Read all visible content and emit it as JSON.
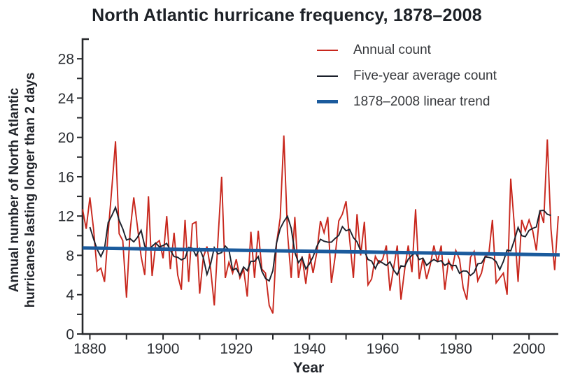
{
  "chart_data": {
    "type": "line",
    "title": "North Atlantic hurricane frequency, 1878–2008",
    "xlabel": "Year",
    "ylabel_line1": "Annual number of North Atlantic",
    "ylabel_line2": "hurricanes lasting longer than 2 days",
    "xlim": [
      1878,
      2008
    ],
    "ylim": [
      0,
      30
    ],
    "x_ticks_all": [
      1880,
      1890,
      1900,
      1910,
      1920,
      1930,
      1940,
      1950,
      1960,
      1970,
      1980,
      1990,
      2000
    ],
    "x_ticks_labeled": [
      1880,
      1900,
      1920,
      1940,
      1960,
      1980,
      2000
    ],
    "y_ticks_all": [
      0,
      2,
      4,
      6,
      8,
      10,
      12,
      14,
      16,
      18,
      20,
      22,
      24,
      26,
      28
    ],
    "y_ticks_labeled": [
      0,
      4,
      8,
      12,
      16,
      20,
      24,
      28
    ],
    "grid": "off",
    "legend_position": "top-right-inside",
    "years": {
      "start": 1878,
      "end": 2008,
      "step": 1
    },
    "annual_count": [
      12.7,
      10.7,
      13.9,
      10.7,
      6.4,
      6.7,
      5.3,
      10.3,
      14.8,
      19.6,
      10.2,
      9.5,
      3.7,
      10.5,
      13.9,
      10.9,
      7.9,
      6.0,
      14.0,
      5.9,
      9.2,
      9.5,
      7.7,
      12.0,
      6.6,
      10.3,
      6.0,
      4.5,
      11.6,
      5.3,
      11.2,
      11.4,
      4.1,
      7.8,
      8.9,
      6.6,
      2.9,
      9.5,
      16.0,
      5.7,
      7.3,
      6.2,
      7.6,
      5.7,
      6.6,
      3.8,
      10.4,
      5.7,
      10.5,
      6.6,
      6.2,
      2.9,
      2.1,
      9.2,
      11.8,
      20.2,
      10.3,
      5.7,
      11.9,
      5.7,
      7.9,
      5.1,
      8.2,
      6.2,
      8.3,
      11.5,
      10.3,
      11.9,
      5.2,
      7.8,
      11.5,
      12.2,
      13.5,
      9.6,
      5.7,
      12.2,
      8.0,
      11.4,
      5.0,
      5.6,
      7.9,
      7.2,
      7.6,
      9.0,
      4.4,
      6.7,
      9.0,
      3.5,
      6.5,
      9.0,
      6.3,
      12.7,
      5.6,
      7.7,
      5.6,
      7.0,
      9.0,
      7.3,
      9.0,
      4.5,
      7.5,
      6.6,
      8.5,
      7.6,
      4.7,
      3.5,
      7.8,
      8.4,
      5.4,
      6.2,
      7.9,
      8.1,
      11.6,
      5.2,
      5.7,
      6.2,
      4.0,
      15.8,
      11.0,
      5.3,
      11.6,
      10.5,
      11.6,
      10.5,
      8.5,
      12.6,
      11.3,
      19.8,
      10.7,
      6.5,
      12.0
    ],
    "five_year_average_method": "centered 5-year moving average of annual_count, plotted 1880-2006",
    "trend": {
      "start_year": 1878,
      "start_value": 8.75,
      "end_year": 2008,
      "end_value": 8.05
    },
    "colors": {
      "annual": "#c8271d",
      "five_year_average": "#1b202b",
      "trend": "#1b5b9d",
      "axis": "#26282b",
      "tick_text": "#2b2e33",
      "title_text": "#1d2127"
    }
  },
  "legend": {
    "items": [
      {
        "label": "Annual count",
        "color": "#c8271d",
        "thickness": 2.5
      },
      {
        "label": "Five-year average count",
        "color": "#1b202b",
        "thickness": 2.5
      },
      {
        "label": "1878–2008 linear trend",
        "color": "#1b5b9d",
        "thickness": 5
      }
    ]
  }
}
